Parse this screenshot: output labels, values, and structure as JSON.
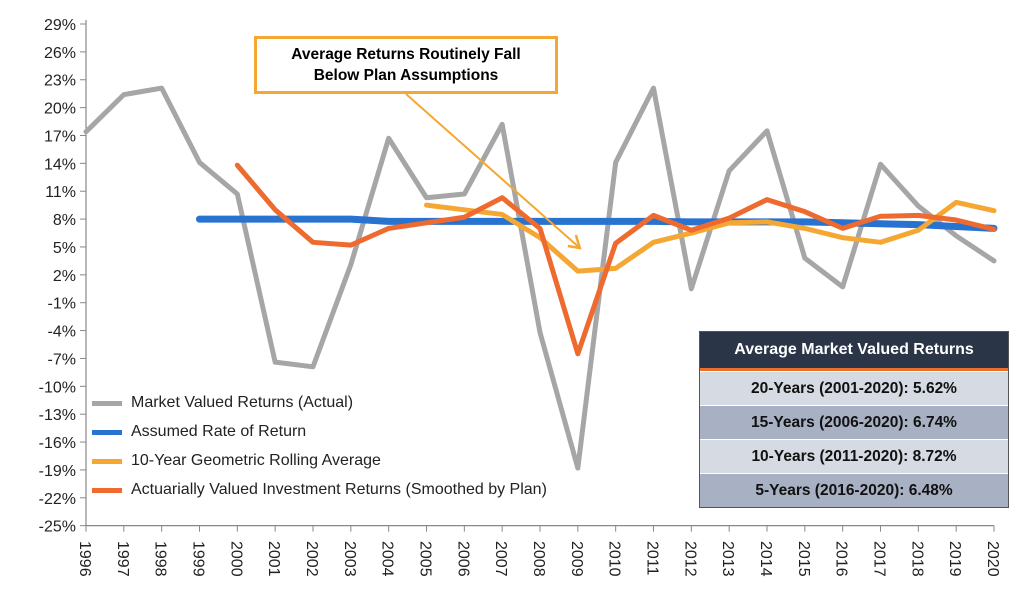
{
  "chart_data": {
    "type": "line",
    "title": "",
    "xlabel": "",
    "ylabel": "",
    "x": [
      1996,
      1997,
      1998,
      1999,
      2000,
      2001,
      2002,
      2003,
      2004,
      2005,
      2006,
      2007,
      2008,
      2009,
      2010,
      2011,
      2012,
      2013,
      2014,
      2015,
      2016,
      2017,
      2018,
      2019,
      2020
    ],
    "ylim": [
      -25,
      29
    ],
    "yticks": [
      "29%",
      "26%",
      "23%",
      "20%",
      "17%",
      "14%",
      "11%",
      "8%",
      "5%",
      "2%",
      "-1%",
      "-4%",
      "-7%",
      "-10%",
      "-13%",
      "-16%",
      "-19%",
      "-22%",
      "-25%"
    ],
    "grid": false,
    "legend_placement": "bottom-left",
    "series": [
      {
        "name": "Market Valued Returns (Actual)",
        "color": "#a6a6a6",
        "values": [
          17.4,
          21.4,
          22.1,
          14.1,
          10.7,
          -7.4,
          -7.9,
          3.1,
          16.7,
          10.3,
          10.7,
          18.2,
          -4.2,
          -18.8,
          14.1,
          22.1,
          0.5,
          13.2,
          17.5,
          3.8,
          0.7,
          13.9,
          9.4,
          6.2,
          3.5
        ]
      },
      {
        "name": "Assumed Rate of Return",
        "color": "#2872d0",
        "values": [
          null,
          null,
          null,
          8.0,
          8.0,
          8.0,
          8.0,
          8.0,
          7.75,
          7.75,
          7.75,
          7.75,
          7.75,
          7.75,
          7.75,
          7.75,
          7.7,
          7.7,
          7.7,
          7.7,
          7.6,
          7.5,
          7.4,
          7.2,
          7.0
        ]
      },
      {
        "name": "10-Year Geometric Rolling Average",
        "color": "#f5a733",
        "values": [
          null,
          null,
          null,
          null,
          null,
          null,
          null,
          null,
          null,
          9.5,
          9.0,
          8.5,
          6.0,
          2.4,
          2.7,
          5.5,
          6.5,
          7.6,
          7.7,
          7.0,
          6.0,
          5.5,
          6.8,
          9.8,
          8.9
        ]
      },
      {
        "name": "Actuarially Valued Investment Returns (Smoothed by Plan)",
        "color": "#ee6a2f",
        "values": [
          null,
          null,
          null,
          null,
          13.8,
          9.0,
          5.5,
          5.2,
          7.0,
          7.6,
          8.2,
          10.3,
          7.0,
          -6.5,
          5.4,
          8.4,
          6.8,
          8.1,
          10.1,
          8.8,
          7.0,
          8.3,
          8.4,
          7.9,
          6.9
        ]
      }
    ],
    "annotation": {
      "text_line1": "Average Returns Routinely Fall",
      "text_line2": "Below Plan Assumptions",
      "points_to_year": 2009
    }
  },
  "table": {
    "title": "Average Market Valued Returns",
    "rows": [
      "20-Years (2001-2020): 5.62%",
      "15-Years (2006-2020): 6.74%",
      "10-Years (2011-2020): 8.72%",
      "5-Years  (2016-2020): 6.48%"
    ]
  }
}
